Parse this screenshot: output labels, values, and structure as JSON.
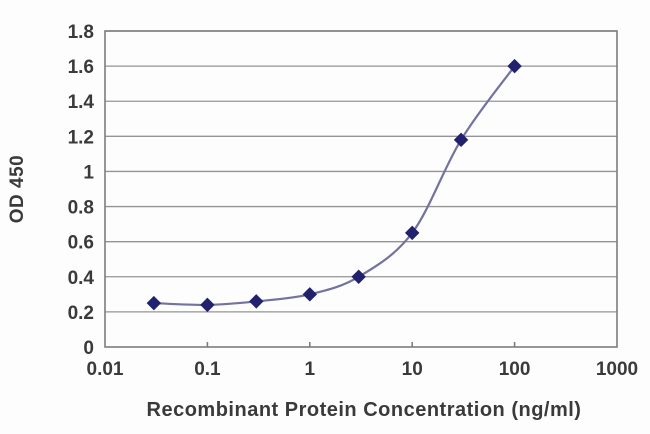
{
  "chart_data": {
    "type": "line",
    "title": "",
    "xlabel": "Recombinant Protein Concentration (ng/ml)",
    "ylabel": "OD 450",
    "x_scale": "log",
    "x": [
      0.03,
      0.1,
      0.3,
      1,
      3,
      10,
      30,
      100
    ],
    "y": [
      0.25,
      0.24,
      0.26,
      0.3,
      0.4,
      0.65,
      1.18,
      1.6
    ],
    "xlim": [
      0.01,
      1000
    ],
    "ylim": [
      0,
      1.8
    ],
    "x_ticks": [
      0.01,
      0.1,
      1,
      10,
      100,
      1000
    ],
    "x_tick_labels": [
      "0.01",
      "0.1",
      "1",
      "10",
      "100",
      "1000"
    ],
    "y_ticks": [
      0,
      0.2,
      0.4,
      0.6,
      0.8,
      1,
      1.2,
      1.4,
      1.6,
      1.8
    ],
    "y_tick_labels": [
      "0",
      "0.2",
      "0.4",
      "0.6",
      "0.8",
      "1",
      "1.2",
      "1.4",
      "1.6",
      "1.8"
    ],
    "grid": "horizontal",
    "legend": "none",
    "marker": "diamond",
    "line_style": "smooth",
    "colors": {
      "marker": "#21216e",
      "line": "#73739e",
      "grid": "#949494",
      "border": "#7d7d7d",
      "text": "#3a3a3a",
      "background": "#fdfdfd"
    }
  }
}
